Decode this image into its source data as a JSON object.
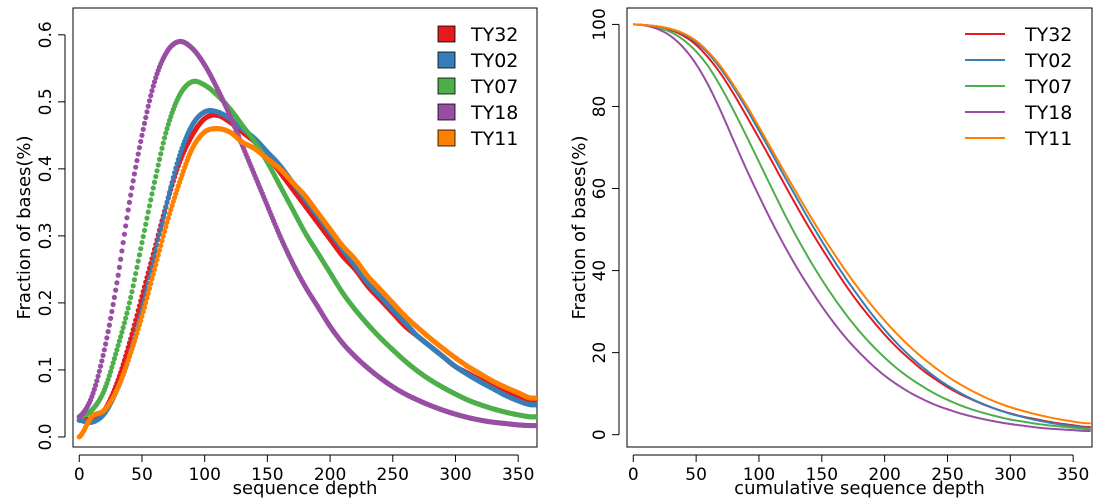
{
  "chart_data": [
    {
      "type": "scatter",
      "xlabel": "sequence depth",
      "ylabel": "Fraction of bases(%)",
      "xlim": [
        -5,
        365
      ],
      "ylim": [
        -0.015,
        0.64
      ],
      "xticks": [
        0,
        50,
        100,
        150,
        200,
        250,
        300,
        350
      ],
      "yticks": [
        0.0,
        0.1,
        0.2,
        0.3,
        0.4,
        0.5,
        0.6
      ],
      "ytick_labels": [
        "0.0",
        "0.1",
        "0.2",
        "0.3",
        "0.4",
        "0.5",
        "0.6"
      ],
      "legend": "top-right",
      "legend_style": "box",
      "series": [
        {
          "name": "TY32",
          "color": "#E41A1C",
          "x": [
            0,
            10,
            20,
            30,
            40,
            50,
            60,
            70,
            80,
            90,
            100,
            110,
            120,
            130,
            140,
            150,
            160,
            170,
            180,
            190,
            200,
            210,
            220,
            230,
            240,
            250,
            260,
            270,
            280,
            290,
            300,
            310,
            320,
            330,
            340,
            350,
            360
          ],
          "y": [
            0.025,
            0.028,
            0.04,
            0.08,
            0.14,
            0.21,
            0.28,
            0.35,
            0.41,
            0.45,
            0.475,
            0.48,
            0.47,
            0.455,
            0.44,
            0.42,
            0.395,
            0.37,
            0.345,
            0.32,
            0.295,
            0.27,
            0.25,
            0.225,
            0.205,
            0.185,
            0.165,
            0.15,
            0.135,
            0.12,
            0.105,
            0.095,
            0.085,
            0.075,
            0.067,
            0.06,
            0.054
          ]
        },
        {
          "name": "TY02",
          "color": "#377EB8",
          "x": [
            0,
            10,
            20,
            30,
            40,
            50,
            60,
            70,
            80,
            90,
            100,
            110,
            120,
            130,
            140,
            150,
            160,
            170,
            180,
            190,
            200,
            210,
            220,
            230,
            240,
            250,
            260,
            270,
            280,
            290,
            300,
            310,
            320,
            330,
            340,
            350,
            360
          ],
          "y": [
            0.025,
            0.022,
            0.035,
            0.07,
            0.12,
            0.19,
            0.27,
            0.35,
            0.42,
            0.465,
            0.485,
            0.485,
            0.475,
            0.46,
            0.445,
            0.425,
            0.405,
            0.38,
            0.355,
            0.33,
            0.305,
            0.28,
            0.255,
            0.23,
            0.21,
            0.19,
            0.17,
            0.15,
            0.135,
            0.12,
            0.105,
            0.093,
            0.082,
            0.072,
            0.062,
            0.054,
            0.048
          ]
        },
        {
          "name": "TY07",
          "color": "#4DAF4A",
          "x": [
            0,
            10,
            20,
            30,
            40,
            50,
            60,
            70,
            80,
            90,
            100,
            110,
            120,
            130,
            140,
            150,
            160,
            170,
            180,
            190,
            200,
            210,
            220,
            230,
            240,
            250,
            260,
            270,
            280,
            290,
            300,
            310,
            320,
            330,
            340,
            350,
            360
          ],
          "y": [
            0.03,
            0.04,
            0.07,
            0.13,
            0.2,
            0.29,
            0.38,
            0.46,
            0.51,
            0.53,
            0.525,
            0.51,
            0.49,
            0.465,
            0.44,
            0.41,
            0.375,
            0.34,
            0.305,
            0.275,
            0.245,
            0.215,
            0.19,
            0.168,
            0.148,
            0.13,
            0.113,
            0.098,
            0.085,
            0.074,
            0.064,
            0.055,
            0.048,
            0.042,
            0.037,
            0.033,
            0.03
          ]
        },
        {
          "name": "TY18",
          "color": "#984EA3",
          "x": [
            0,
            10,
            20,
            30,
            40,
            50,
            60,
            70,
            80,
            90,
            100,
            110,
            120,
            130,
            140,
            150,
            160,
            170,
            180,
            190,
            200,
            210,
            220,
            230,
            240,
            250,
            260,
            270,
            280,
            290,
            300,
            310,
            320,
            330,
            340,
            350,
            360
          ],
          "y": [
            0.03,
            0.06,
            0.13,
            0.23,
            0.35,
            0.45,
            0.53,
            0.575,
            0.59,
            0.58,
            0.555,
            0.52,
            0.48,
            0.435,
            0.39,
            0.345,
            0.3,
            0.26,
            0.225,
            0.195,
            0.165,
            0.14,
            0.12,
            0.103,
            0.088,
            0.075,
            0.064,
            0.055,
            0.047,
            0.04,
            0.034,
            0.029,
            0.025,
            0.022,
            0.02,
            0.018,
            0.017
          ]
        },
        {
          "name": "TY11",
          "color": "#FF7F00",
          "x": [
            0,
            10,
            20,
            30,
            40,
            50,
            60,
            70,
            80,
            90,
            100,
            110,
            120,
            130,
            140,
            150,
            160,
            170,
            180,
            190,
            200,
            210,
            220,
            230,
            240,
            250,
            260,
            270,
            280,
            290,
            300,
            310,
            320,
            330,
            340,
            350,
            360
          ],
          "y": [
            0.0,
            0.03,
            0.04,
            0.07,
            0.12,
            0.18,
            0.25,
            0.32,
            0.38,
            0.43,
            0.455,
            0.46,
            0.455,
            0.44,
            0.43,
            0.415,
            0.4,
            0.38,
            0.36,
            0.335,
            0.31,
            0.285,
            0.265,
            0.24,
            0.22,
            0.2,
            0.18,
            0.163,
            0.147,
            0.132,
            0.118,
            0.105,
            0.094,
            0.083,
            0.074,
            0.066,
            0.058
          ]
        }
      ]
    },
    {
      "type": "line",
      "xlabel": "cumulative sequence depth",
      "ylabel": "Fraction of bases(%)",
      "xlim": [
        -5,
        365
      ],
      "ylim": [
        -3,
        104
      ],
      "xticks": [
        0,
        50,
        100,
        150,
        200,
        250,
        300,
        350
      ],
      "yticks": [
        0,
        20,
        40,
        60,
        80,
        100
      ],
      "ytick_labels": [
        "0",
        "20",
        "40",
        "60",
        "80",
        "100"
      ],
      "legend": "top-right",
      "legend_style": "line",
      "series": [
        {
          "name": "TY32",
          "color": "#E41A1C",
          "x": [
            0,
            10,
            20,
            30,
            40,
            50,
            60,
            70,
            80,
            90,
            100,
            110,
            120,
            130,
            140,
            150,
            160,
            170,
            180,
            190,
            200,
            210,
            220,
            230,
            240,
            250,
            260,
            270,
            280,
            290,
            300,
            310,
            320,
            330,
            340,
            350,
            360
          ],
          "y": [
            100.0,
            99.8,
            99.4,
            98.6,
            97.2,
            95.0,
            91.8,
            87.8,
            83.0,
            77.7,
            72.3,
            66.8,
            61.2,
            55.7,
            50.4,
            45.4,
            40.6,
            36.0,
            31.8,
            28.0,
            24.4,
            21.2,
            18.4,
            15.8,
            13.6,
            11.6,
            9.9,
            8.5,
            7.2,
            6.1,
            5.2,
            4.4,
            3.8,
            3.2,
            2.7,
            2.3,
            1.9
          ]
        },
        {
          "name": "TY02",
          "color": "#377EB8",
          "x": [
            0,
            10,
            20,
            30,
            40,
            50,
            60,
            70,
            80,
            90,
            100,
            110,
            120,
            130,
            140,
            150,
            160,
            170,
            180,
            190,
            200,
            210,
            220,
            230,
            240,
            250,
            260,
            270,
            280,
            290,
            300,
            310,
            320,
            330,
            340,
            350,
            360
          ],
          "y": [
            100.0,
            99.8,
            99.5,
            98.8,
            97.6,
            95.6,
            92.8,
            89.0,
            84.5,
            79.5,
            74.1,
            68.7,
            63.1,
            57.7,
            52.3,
            47.2,
            42.3,
            37.7,
            33.4,
            29.3,
            25.6,
            22.2,
            19.2,
            16.5,
            14.1,
            12.0,
            10.2,
            8.6,
            7.3,
            6.1,
            5.1,
            4.3,
            3.6,
            3.0,
            2.5,
            2.1,
            1.7
          ]
        },
        {
          "name": "TY07",
          "color": "#4DAF4A",
          "x": [
            0,
            10,
            20,
            30,
            40,
            50,
            60,
            70,
            80,
            90,
            100,
            110,
            120,
            130,
            140,
            150,
            160,
            170,
            180,
            190,
            200,
            210,
            220,
            230,
            240,
            250,
            260,
            270,
            280,
            290,
            300,
            310,
            320,
            330,
            340,
            350,
            360
          ],
          "y": [
            100.0,
            99.8,
            99.2,
            98.1,
            96.2,
            93.4,
            89.6,
            84.6,
            78.9,
            72.8,
            66.5,
            60.2,
            54.0,
            48.2,
            42.8,
            37.8,
            33.2,
            29.0,
            25.2,
            21.8,
            18.8,
            16.1,
            13.8,
            11.8,
            10.0,
            8.5,
            7.2,
            6.1,
            5.2,
            4.4,
            3.7,
            3.2,
            2.7,
            2.3,
            2.0,
            1.7,
            1.4
          ]
        },
        {
          "name": "TY18",
          "color": "#984EA3",
          "x": [
            0,
            10,
            20,
            30,
            40,
            50,
            60,
            70,
            80,
            90,
            100,
            110,
            120,
            130,
            140,
            150,
            160,
            170,
            180,
            190,
            200,
            210,
            220,
            230,
            240,
            250,
            260,
            270,
            280,
            290,
            300,
            310,
            320,
            330,
            340,
            350,
            360
          ],
          "y": [
            100.0,
            99.7,
            98.8,
            97.1,
            94.3,
            90.3,
            85.0,
            78.6,
            71.6,
            64.7,
            58.2,
            52.0,
            46.2,
            40.8,
            35.9,
            31.3,
            27.1,
            23.3,
            20.0,
            17.0,
            14.4,
            12.2,
            10.3,
            8.7,
            7.3,
            6.2,
            5.2,
            4.4,
            3.7,
            3.1,
            2.6,
            2.2,
            1.8,
            1.5,
            1.3,
            1.1,
            0.9
          ]
        },
        {
          "name": "TY11",
          "color": "#FF7F00",
          "x": [
            0,
            10,
            20,
            30,
            40,
            50,
            60,
            70,
            80,
            90,
            100,
            110,
            120,
            130,
            140,
            150,
            160,
            170,
            180,
            190,
            200,
            210,
            220,
            230,
            240,
            250,
            260,
            270,
            280,
            290,
            300,
            310,
            320,
            330,
            340,
            350,
            360
          ],
          "y": [
            100.0,
            99.8,
            99.5,
            98.9,
            97.8,
            96.0,
            93.2,
            89.6,
            85.1,
            80.3,
            75.0,
            69.6,
            64.2,
            58.9,
            53.7,
            48.7,
            44.0,
            39.5,
            35.3,
            31.4,
            27.8,
            24.5,
            21.5,
            18.8,
            16.4,
            14.2,
            12.3,
            10.6,
            9.1,
            7.8,
            6.7,
            5.8,
            5.0,
            4.3,
            3.7,
            3.2,
            2.8
          ]
        }
      ]
    }
  ]
}
